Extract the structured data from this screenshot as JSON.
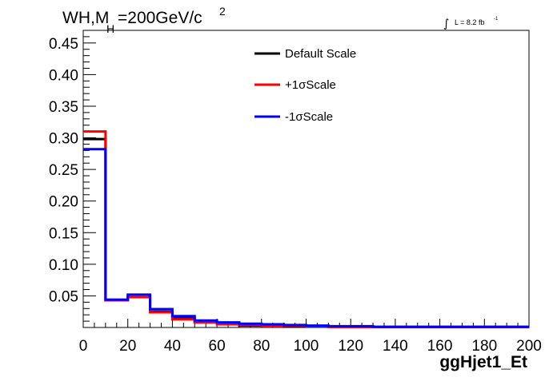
{
  "chart_data": {
    "type": "line",
    "title": "WH,M",
    "title_subscript": "H",
    "title_rest": "=200GeV/c",
    "title_superscript": "2",
    "lumi_text": "L = 8.2 fb",
    "lumi_superscript": "-1",
    "lumi_integral_symbol": "∫",
    "xlabel": "ggHjet1_Et",
    "ylabel": "",
    "xlim": [
      0,
      200
    ],
    "ylim": [
      0,
      0.47
    ],
    "bin_edges": [
      0,
      10,
      20,
      30,
      40,
      50,
      60,
      70,
      80,
      90,
      100,
      110,
      120,
      130,
      140,
      150,
      160,
      170,
      180,
      190,
      200
    ],
    "x_ticks": [
      "0",
      "20",
      "40",
      "60",
      "80",
      "100",
      "120",
      "140",
      "160",
      "180",
      "200"
    ],
    "x_tick_values": [
      0,
      20,
      40,
      60,
      80,
      100,
      120,
      140,
      160,
      180,
      200
    ],
    "y_ticks": [
      "0.05",
      "0.10",
      "0.15",
      "0.20",
      "0.25",
      "0.30",
      "0.35",
      "0.40",
      "0.45"
    ],
    "y_tick_values": [
      0.05,
      0.1,
      0.15,
      0.2,
      0.25,
      0.3,
      0.35,
      0.4,
      0.45
    ],
    "series": [
      {
        "name": "Default Scale",
        "color": "#000000",
        "values": [
          0.298,
          0.043,
          0.048,
          0.025,
          0.015,
          0.009,
          0.006,
          0.003,
          0.003,
          0.002,
          0.002,
          0.001,
          0.001,
          0.001,
          0.001,
          0.001,
          0.001,
          0.001,
          0.001,
          0.001
        ]
      },
      {
        "name": "+1σScale",
        "color": "#ff0000",
        "values": [
          0.31,
          0.043,
          0.048,
          0.024,
          0.013,
          0.008,
          0.005,
          0.004,
          0.003,
          0.003,
          0.002,
          0.001,
          0.001,
          0.001,
          0.001,
          0.001,
          0.001,
          0.001,
          0.001,
          0.001
        ]
      },
      {
        "name": "-1σScale",
        "color": "#0000ff",
        "values": [
          0.282,
          0.044,
          0.052,
          0.029,
          0.018,
          0.011,
          0.008,
          0.006,
          0.005,
          0.004,
          0.003,
          0.002,
          0.002,
          0.001,
          0.001,
          0.001,
          0.001,
          0.001,
          0.001,
          0.001
        ]
      }
    ],
    "legend_position": "top-center",
    "grid": false
  }
}
